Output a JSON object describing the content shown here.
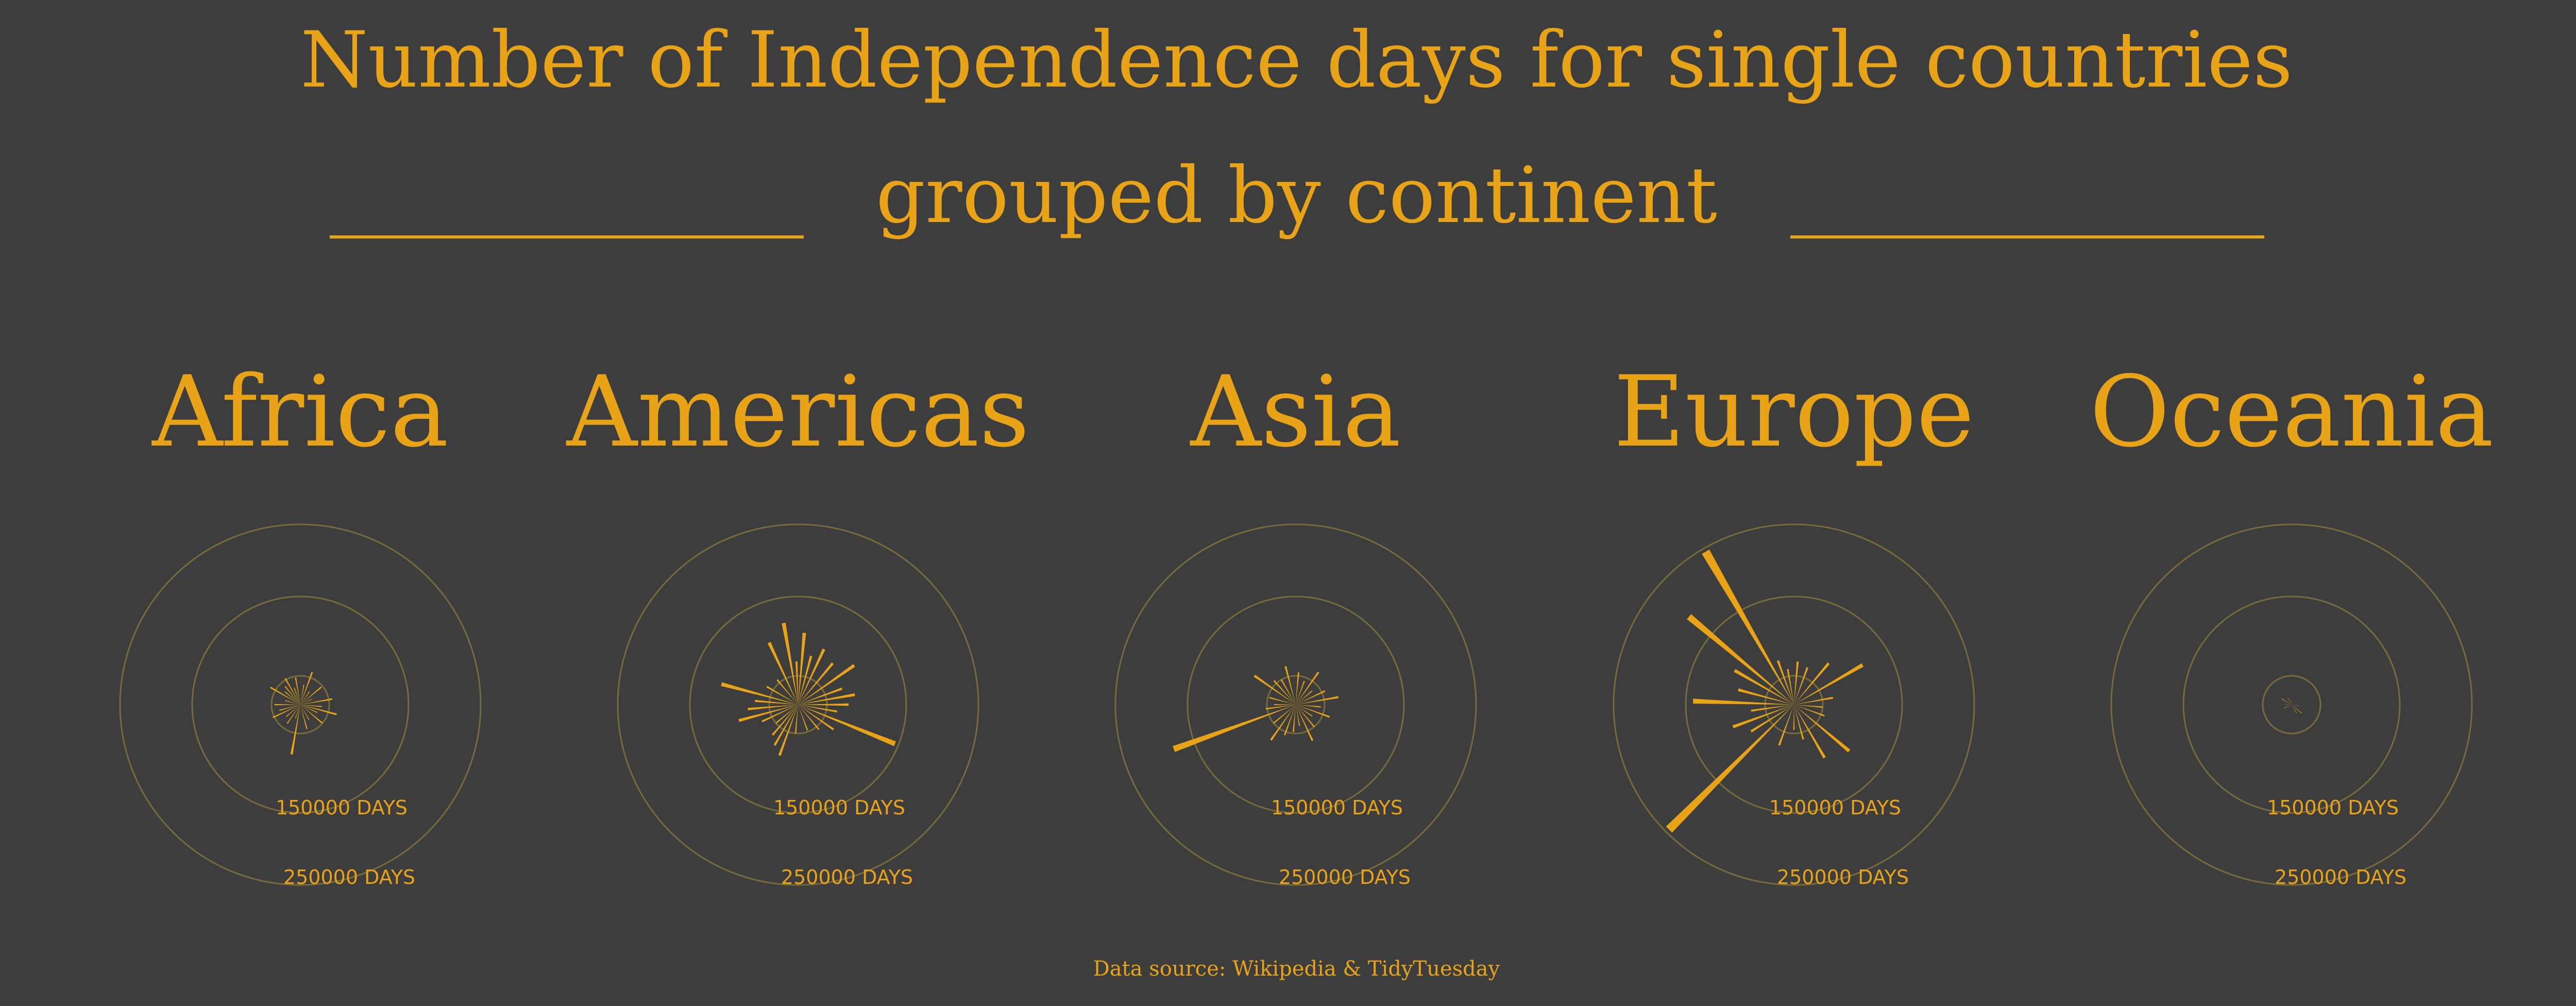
{
  "title_line1": "Number of Independence days for single countries",
  "title_line2": "grouped by continent",
  "source": "Data source: Wikipedia & TidyTuesday",
  "colors": {
    "background": "#3d3d3d",
    "accent": "#e8a317",
    "ring": "#786a3a"
  },
  "chart_data": {
    "type": "radial-bar",
    "unit": "DAYS",
    "ring_values": [
      40000,
      150000,
      250000
    ],
    "ring_labels": [
      "150000 DAYS",
      "250000 DAYS"
    ],
    "panels": [
      {
        "continent": "Africa",
        "bars": [
          {
            "angle": 10,
            "days": 28000
          },
          {
            "angle": 20,
            "days": 48000
          },
          {
            "angle": 35,
            "days": 22000
          },
          {
            "angle": 50,
            "days": 38000
          },
          {
            "angle": 65,
            "days": 18000
          },
          {
            "angle": 80,
            "days": 45000
          },
          {
            "angle": 95,
            "days": 30000
          },
          {
            "angle": 105,
            "days": 52000
          },
          {
            "angle": 115,
            "days": 26000
          },
          {
            "angle": 130,
            "days": 40000
          },
          {
            "angle": 150,
            "days": 24000
          },
          {
            "angle": 165,
            "days": 35000
          },
          {
            "angle": 190,
            "days": 70000
          },
          {
            "angle": 200,
            "days": 20000
          },
          {
            "angle": 215,
            "days": 32000
          },
          {
            "angle": 230,
            "days": 26000
          },
          {
            "angle": 245,
            "days": 42000
          },
          {
            "angle": 255,
            "days": 30000
          },
          {
            "angle": 270,
            "days": 36000
          },
          {
            "angle": 285,
            "days": 22000
          },
          {
            "angle": 300,
            "days": 48000
          },
          {
            "angle": 310,
            "days": 28000
          },
          {
            "angle": 320,
            "days": 33000
          },
          {
            "angle": 330,
            "days": 42000
          },
          {
            "angle": 340,
            "days": 25000
          },
          {
            "angle": 350,
            "days": 38000
          }
        ]
      },
      {
        "continent": "Americas",
        "bars": [
          {
            "angle": 5,
            "days": 100000
          },
          {
            "angle": 15,
            "days": 70000
          },
          {
            "angle": 25,
            "days": 85000
          },
          {
            "angle": 40,
            "days": 75000
          },
          {
            "angle": 55,
            "days": 95000
          },
          {
            "angle": 70,
            "days": 65000
          },
          {
            "angle": 80,
            "days": 80000
          },
          {
            "angle": 90,
            "days": 70000
          },
          {
            "angle": 100,
            "days": 55000
          },
          {
            "angle": 112,
            "days": 145000
          },
          {
            "angle": 125,
            "days": 60000
          },
          {
            "angle": 140,
            "days": 45000
          },
          {
            "angle": 160,
            "days": 38000
          },
          {
            "angle": 185,
            "days": 40000
          },
          {
            "angle": 200,
            "days": 75000
          },
          {
            "angle": 210,
            "days": 65000
          },
          {
            "angle": 220,
            "days": 55000
          },
          {
            "angle": 230,
            "days": 40000
          },
          {
            "angle": 245,
            "days": 55000
          },
          {
            "angle": 255,
            "days": 85000
          },
          {
            "angle": 265,
            "days": 70000
          },
          {
            "angle": 275,
            "days": 60000
          },
          {
            "angle": 285,
            "days": 110000
          },
          {
            "angle": 300,
            "days": 50000
          },
          {
            "angle": 320,
            "days": 45000
          },
          {
            "angle": 335,
            "days": 95000
          },
          {
            "angle": 350,
            "days": 115000
          },
          {
            "angle": 358,
            "days": 60000
          }
        ]
      },
      {
        "continent": "Asia",
        "bars": [
          {
            "angle": 5,
            "days": 45000
          },
          {
            "angle": 20,
            "days": 35000
          },
          {
            "angle": 35,
            "days": 55000
          },
          {
            "angle": 50,
            "days": 30000
          },
          {
            "angle": 65,
            "days": 45000
          },
          {
            "angle": 80,
            "days": 60000
          },
          {
            "angle": 95,
            "days": 35000
          },
          {
            "angle": 110,
            "days": 50000
          },
          {
            "angle": 125,
            "days": 28000
          },
          {
            "angle": 140,
            "days": 40000
          },
          {
            "angle": 155,
            "days": 55000
          },
          {
            "angle": 170,
            "days": 30000
          },
          {
            "angle": 185,
            "days": 38000
          },
          {
            "angle": 200,
            "days": 45000
          },
          {
            "angle": 215,
            "days": 60000
          },
          {
            "angle": 230,
            "days": 40000
          },
          {
            "angle": 250,
            "days": 180000
          },
          {
            "angle": 262,
            "days": 42000
          },
          {
            "angle": 270,
            "days": 30000
          },
          {
            "angle": 285,
            "days": 38000
          },
          {
            "angle": 305,
            "days": 70000
          },
          {
            "angle": 318,
            "days": 45000
          },
          {
            "angle": 330,
            "days": 40000
          },
          {
            "angle": 345,
            "days": 55000
          }
        ]
      },
      {
        "continent": "Europe",
        "bars": [
          {
            "angle": 5,
            "days": 60000
          },
          {
            "angle": 20,
            "days": 55000
          },
          {
            "angle": 40,
            "days": 75000
          },
          {
            "angle": 60,
            "days": 110000
          },
          {
            "angle": 80,
            "days": 55000
          },
          {
            "angle": 95,
            "days": 40000
          },
          {
            "angle": 110,
            "days": 45000
          },
          {
            "angle": 130,
            "days": 100000
          },
          {
            "angle": 150,
            "days": 85000
          },
          {
            "angle": 165,
            "days": 50000
          },
          {
            "angle": 180,
            "days": 35000
          },
          {
            "angle": 200,
            "days": 60000
          },
          {
            "angle": 225,
            "days": 245000
          },
          {
            "angle": 238,
            "days": 70000
          },
          {
            "angle": 250,
            "days": 90000
          },
          {
            "angle": 262,
            "days": 60000
          },
          {
            "angle": 272,
            "days": 140000
          },
          {
            "angle": 285,
            "days": 80000
          },
          {
            "angle": 300,
            "days": 95000
          },
          {
            "angle": 310,
            "days": 190000
          },
          {
            "angle": 330,
            "days": 245000
          },
          {
            "angle": 340,
            "days": 65000
          },
          {
            "angle": 350,
            "days": 50000
          }
        ]
      },
      {
        "continent": "Oceania",
        "bars": [
          {
            "angle": 100,
            "days": 10000
          },
          {
            "angle": 130,
            "days": 18000
          },
          {
            "angle": 150,
            "days": 14000
          },
          {
            "angle": 245,
            "days": 12000
          },
          {
            "angle": 270,
            "days": 9000
          },
          {
            "angle": 300,
            "days": 16000
          },
          {
            "angle": 330,
            "days": 11000
          },
          {
            "angle": 350,
            "days": 7000
          }
        ]
      }
    ]
  }
}
